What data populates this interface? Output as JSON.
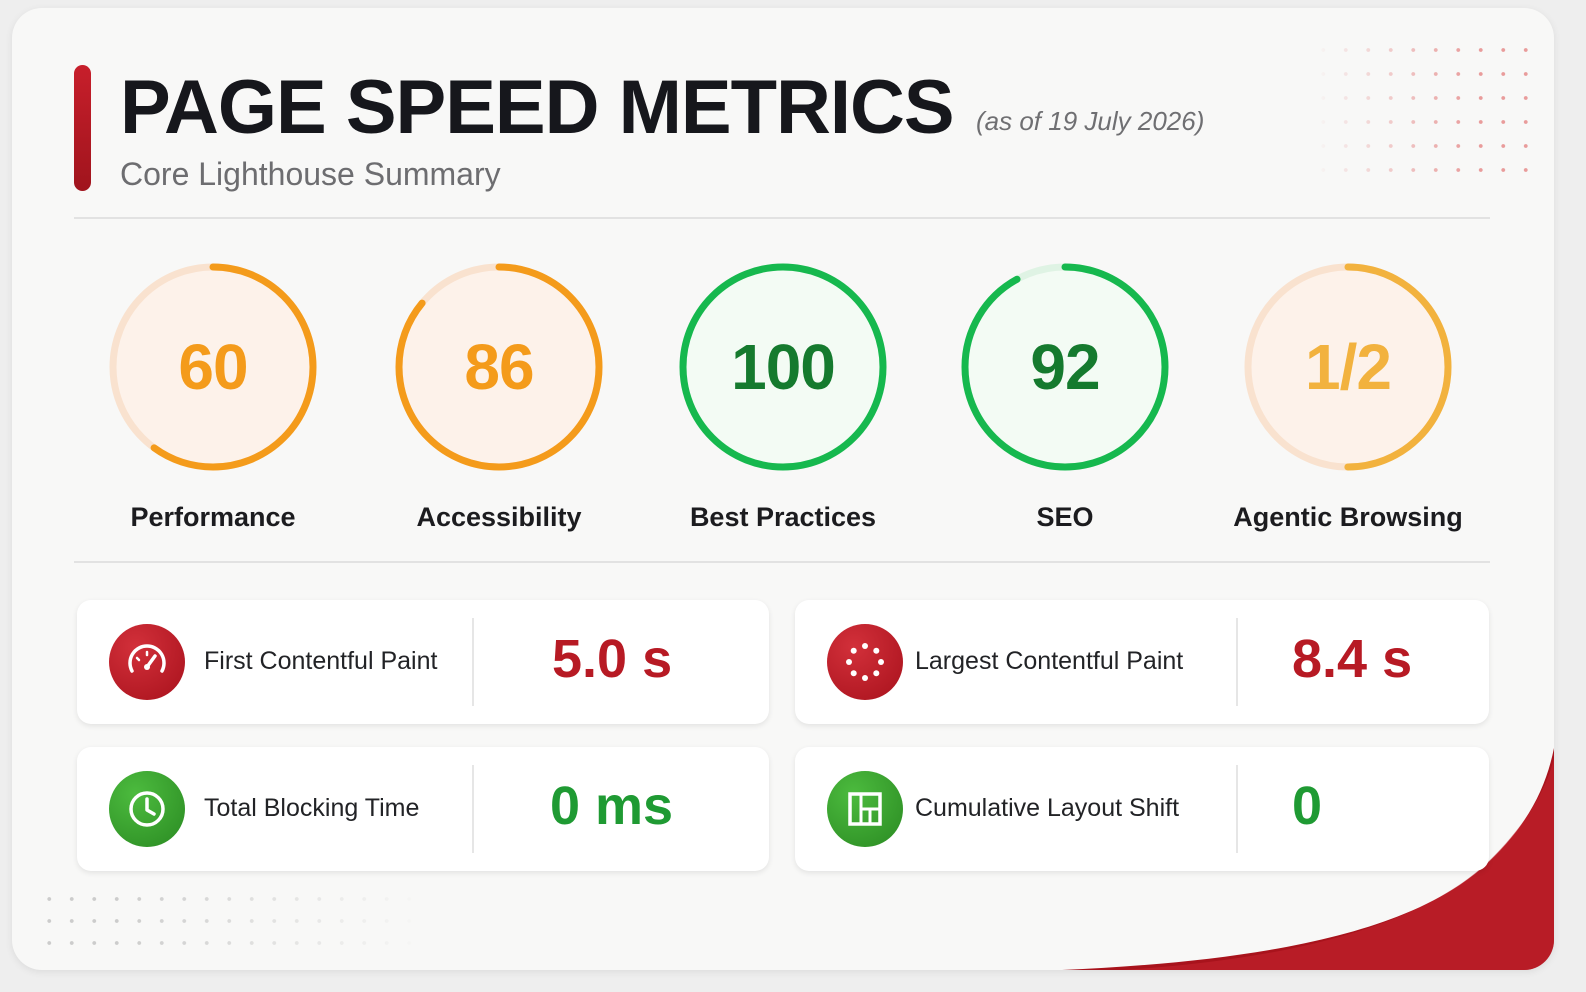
{
  "header": {
    "title": "PAGE SPEED METRICS",
    "as_of": "(as of 19 July 2026)",
    "subtitle": "Core Lighthouse Summary"
  },
  "scores": [
    {
      "label": "Performance",
      "value": "60",
      "fraction": 0.6,
      "color": "#f49b1b",
      "status": "average"
    },
    {
      "label": "Accessibility",
      "value": "86",
      "fraction": 0.86,
      "color": "#f49b1b",
      "status": "average"
    },
    {
      "label": "Best Practices",
      "value": "100",
      "fraction": 1.0,
      "color": "#16b84e",
      "status": "good"
    },
    {
      "label": "SEO",
      "value": "92",
      "fraction": 0.92,
      "color": "#16b84e",
      "status": "good"
    },
    {
      "label": "Agentic Browsing",
      "value": "1/2",
      "fraction": 0.5,
      "color": "#f2b23e",
      "status": "average"
    }
  ],
  "metrics": [
    {
      "label": "First Contentful Paint",
      "value": "5.0 s",
      "status": "poor",
      "icon": "speedometer-icon"
    },
    {
      "label": "Largest Contentful Paint",
      "value": "8.4 s",
      "status": "poor",
      "icon": "loading-dots-icon"
    },
    {
      "label": "Total Blocking Time",
      "value": "0 ms",
      "status": "good",
      "icon": "clock-icon"
    },
    {
      "label": "Cumulative Layout Shift",
      "value": "0",
      "status": "good",
      "icon": "layout-icon"
    }
  ],
  "colors": {
    "accent": "#b71a24",
    "good": "#1f9a33",
    "average": "#f49b1b",
    "poor": "#b71a24"
  }
}
